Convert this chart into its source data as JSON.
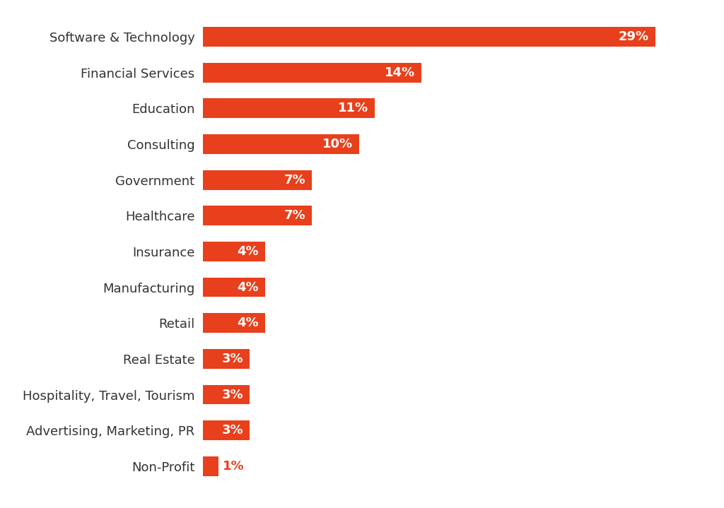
{
  "categories": [
    "Non-Profit",
    "Advertising, Marketing, PR",
    "Hospitality, Travel, Tourism",
    "Real Estate",
    "Retail",
    "Manufacturing",
    "Insurance",
    "Healthcare",
    "Government",
    "Consulting",
    "Education",
    "Financial Services",
    "Software & Technology"
  ],
  "values": [
    1,
    3,
    3,
    3,
    4,
    4,
    4,
    7,
    7,
    10,
    11,
    14,
    29
  ],
  "bar_color": "#E8401C",
  "label_color_inside": "#FFFFFF",
  "label_color_outside": "#E8401C",
  "background_color": "#FFFFFF",
  "label_fontsize": 13,
  "category_fontsize": 13,
  "xlim": [
    0,
    32
  ],
  "bar_height": 0.55,
  "figure_width": 10.24,
  "figure_height": 7.19,
  "dpi": 100,
  "small_bar_threshold": 2
}
